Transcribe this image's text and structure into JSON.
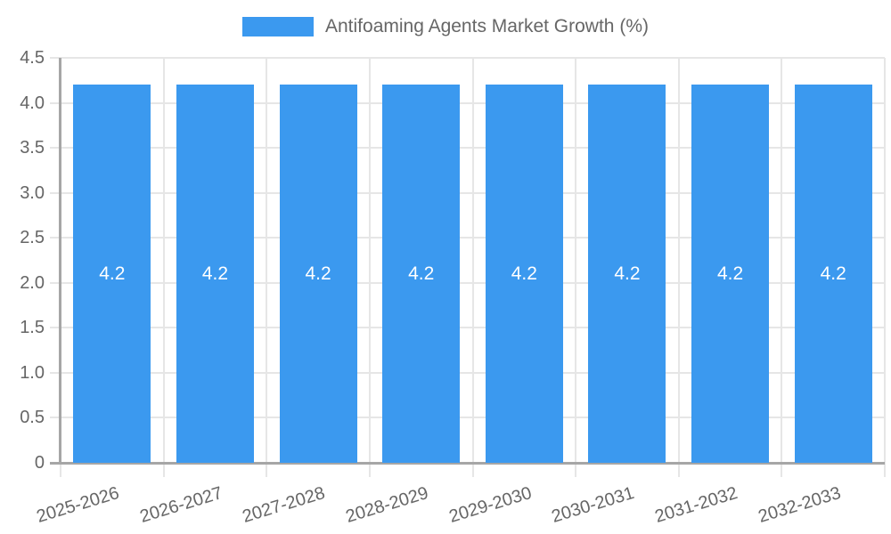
{
  "legend": {
    "label": "Antifoaming Agents Market Growth (%)"
  },
  "chart_data": {
    "type": "bar",
    "title": "Antifoaming Agents Market Growth (%)",
    "categories": [
      "2025-2026",
      "2026-2027",
      "2027-2028",
      "2028-2029",
      "2029-2030",
      "2030-2031",
      "2031-2032",
      "2032-2033"
    ],
    "values": [
      4.2,
      4.2,
      4.2,
      4.2,
      4.2,
      4.2,
      4.2,
      4.2
    ],
    "value_labels": [
      "4.2",
      "4.2",
      "4.2",
      "4.2",
      "4.2",
      "4.2",
      "4.2",
      "4.2"
    ],
    "xlabel": "",
    "ylabel": "",
    "ylim": [
      0,
      4.5
    ],
    "ytick_step": 0.5,
    "ytick_labels": [
      "0",
      "0.5",
      "1.0",
      "1.5",
      "2.0",
      "2.5",
      "3.0",
      "3.5",
      "4.0",
      "4.5"
    ],
    "grid": true,
    "legend_position": "top",
    "bar_color": "#3B99EF",
    "bar_label_color": "#FFFFFF",
    "text_color": "#666666",
    "grid_color": "#E6E6E6",
    "axis_color": "#A6A6A6"
  }
}
